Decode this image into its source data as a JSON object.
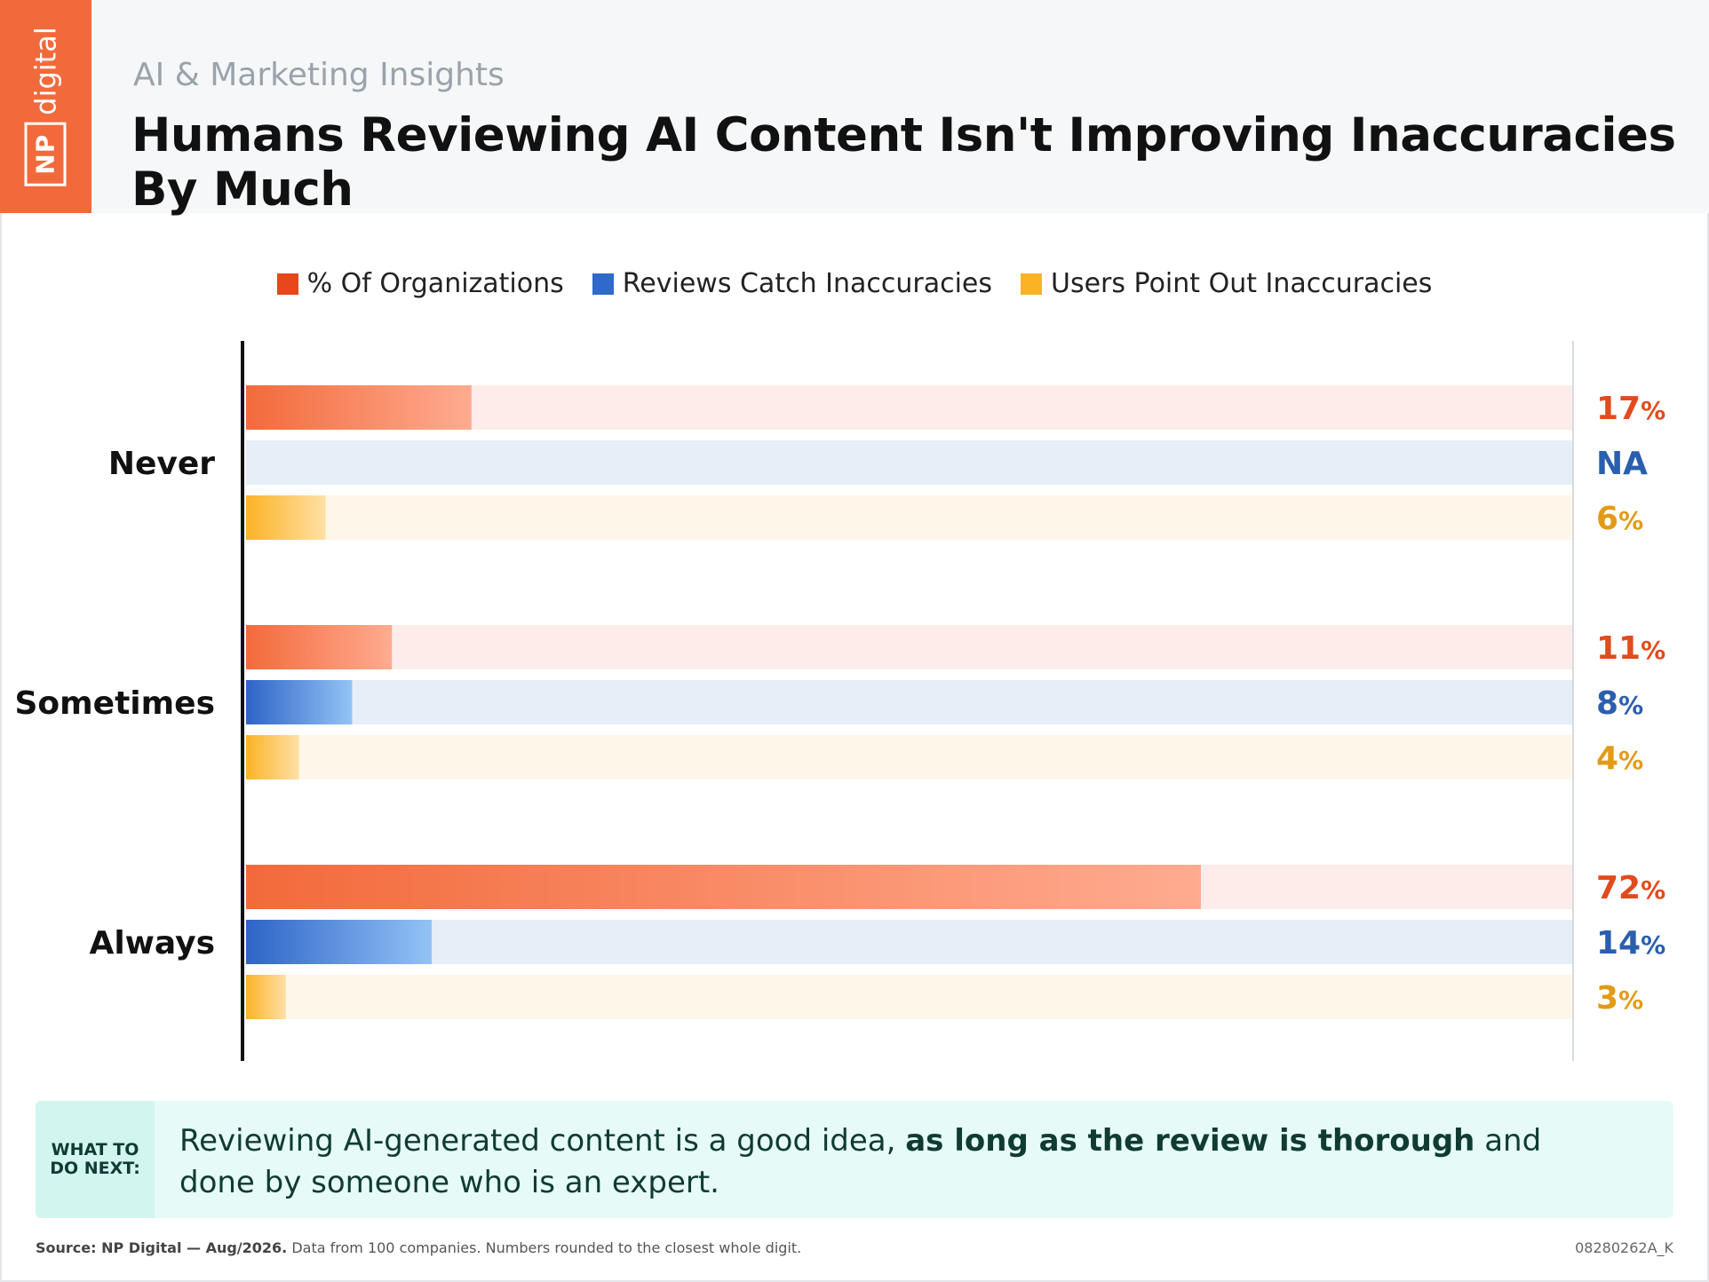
{
  "header": {
    "logo_np": "NP",
    "logo_digital": "digital",
    "kicker": "AI & Marketing Insights",
    "title": "Humans Reviewing AI Content Isn't Improving Inaccuracies By Much"
  },
  "legend": [
    {
      "label": "% Of Organizations",
      "color": "#e8461b"
    },
    {
      "label": "Reviews Catch Inaccuracies",
      "color": "#2f69c9"
    },
    {
      "label": "Users Point Out Inaccuracies",
      "color": "#fbb325"
    }
  ],
  "chart_data": {
    "type": "bar",
    "orientation": "horizontal",
    "categories": [
      "Never",
      "Sometimes",
      "Always"
    ],
    "xlim": [
      0,
      100
    ],
    "grid": false,
    "legend_position": "top-center",
    "series": [
      {
        "name": "% Of Organizations",
        "values": [
          17,
          11,
          72
        ],
        "labels": [
          "17%",
          "11%",
          "72%"
        ],
        "color": "#f26a3b",
        "track": "#fdecea",
        "label_color": "#e24b1e"
      },
      {
        "name": "Reviews Catch Inaccuracies",
        "values": [
          null,
          8,
          14
        ],
        "labels": [
          "NA",
          "8%",
          "14%"
        ],
        "color": "#2f69c9",
        "track": "#e6eef8",
        "label_color": "#2a5fae"
      },
      {
        "name": "Users Point Out Inaccuracies",
        "values": [
          6,
          4,
          3
        ],
        "labels": [
          "6%",
          "4%",
          "3%"
        ],
        "color": "#fbb325",
        "track": "#fff6ea",
        "label_color": "#e39b15"
      }
    ]
  },
  "callout": {
    "tag_line1": "WHAT TO",
    "tag_line2": "DO NEXT:",
    "text_before": "Reviewing AI-generated content is a good idea, ",
    "text_bold": "as long as the review is thorough",
    "text_after": " and done by someone who is an expert."
  },
  "footer": {
    "source_bold": "Source: NP Digital — Aug/2026.",
    "source_rest": " Data from 100 companies. Numbers rounded to the closest whole digit.",
    "code": "08280262A_K"
  }
}
